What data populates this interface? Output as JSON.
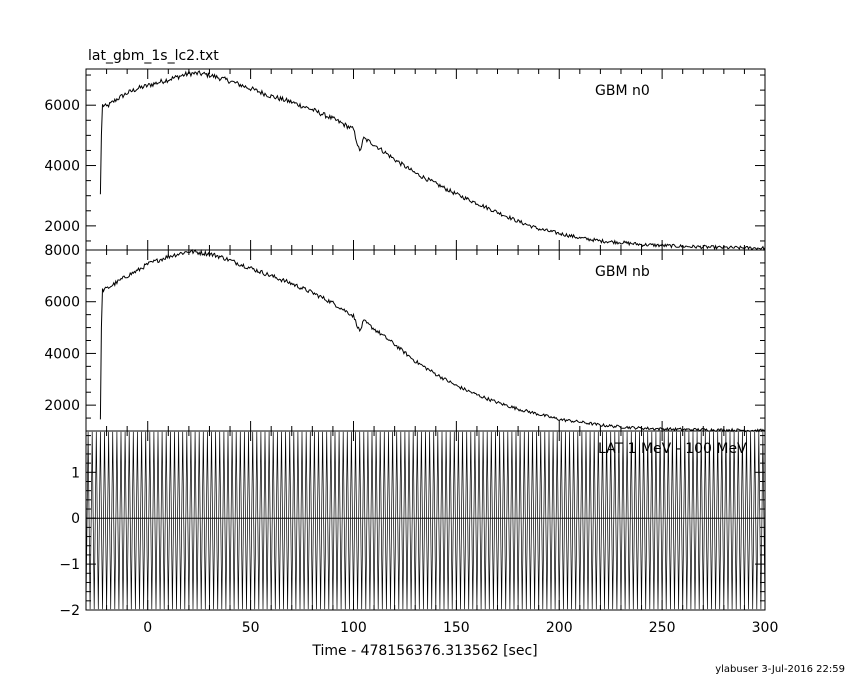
{
  "title": "lat_gbm_1s_lc2.txt",
  "credit": "ylabuser  3-Jul-2016 22:59",
  "chart_data": [
    {
      "type": "line",
      "name": "GBM n0",
      "xlim": [
        -30,
        300
      ],
      "ylim": [
        1200,
        7200
      ],
      "yticks": [
        2000,
        4000,
        6000
      ],
      "x": [
        -23,
        -22.5,
        -22,
        -20,
        -15,
        -10,
        -5,
        0,
        5,
        10,
        15,
        20,
        25,
        30,
        35,
        40,
        50,
        60,
        70,
        80,
        90,
        100,
        103,
        105,
        110,
        120,
        130,
        140,
        150,
        160,
        170,
        180,
        190,
        200,
        210,
        220,
        230,
        240,
        250,
        260,
        270,
        280,
        290,
        300
      ],
      "y": [
        3050,
        5000,
        6000,
        5950,
        6200,
        6400,
        6550,
        6650,
        6750,
        6850,
        6950,
        7050,
        7050,
        7000,
        6900,
        6800,
        6550,
        6300,
        6100,
        5850,
        5550,
        5200,
        4450,
        4900,
        4700,
        4200,
        3750,
        3400,
        3050,
        2750,
        2450,
        2150,
        1900,
        1750,
        1600,
        1500,
        1450,
        1380,
        1350,
        1320,
        1300,
        1280,
        1270,
        1260
      ]
    },
    {
      "type": "line",
      "name": "GBM nb",
      "xlim": [
        -30,
        300
      ],
      "ylim": [
        1000,
        8000
      ],
      "yticks": [
        2000,
        4000,
        6000,
        8000
      ],
      "x": [
        -23,
        -22.5,
        -22,
        -20,
        -15,
        -10,
        -5,
        0,
        5,
        10,
        15,
        20,
        25,
        30,
        35,
        40,
        50,
        60,
        70,
        80,
        90,
        100,
        103,
        105,
        110,
        120,
        130,
        140,
        150,
        160,
        170,
        180,
        190,
        200,
        210,
        220,
        230,
        240,
        250,
        260,
        270,
        280,
        290,
        300
      ],
      "y": [
        1450,
        5000,
        6450,
        6500,
        6750,
        7000,
        7200,
        7450,
        7600,
        7750,
        7850,
        7950,
        7900,
        7850,
        7750,
        7600,
        7300,
        7000,
        6700,
        6350,
        5950,
        5450,
        4850,
        5250,
        4950,
        4350,
        3700,
        3200,
        2750,
        2400,
        2100,
        1850,
        1650,
        1450,
        1350,
        1230,
        1160,
        1110,
        1080,
        1060,
        1050,
        1040,
        1030,
        1020
      ]
    },
    {
      "type": "line",
      "name": "LAT 1 MeV - 100 MeV",
      "xlim": [
        -30,
        300
      ],
      "ylim": [
        -2,
        1.9
      ],
      "yticks": [
        -2,
        -1,
        0,
        1
      ],
      "xticks": [
        0,
        50,
        100,
        150,
        200,
        250,
        300
      ],
      "xlabel": "Time - 478156376.313562 [sec]",
      "x_start": -30,
      "x_step": 1,
      "note": "values alternate between bottom and top of range (dense vertical lines), baseline at 0"
    }
  ]
}
